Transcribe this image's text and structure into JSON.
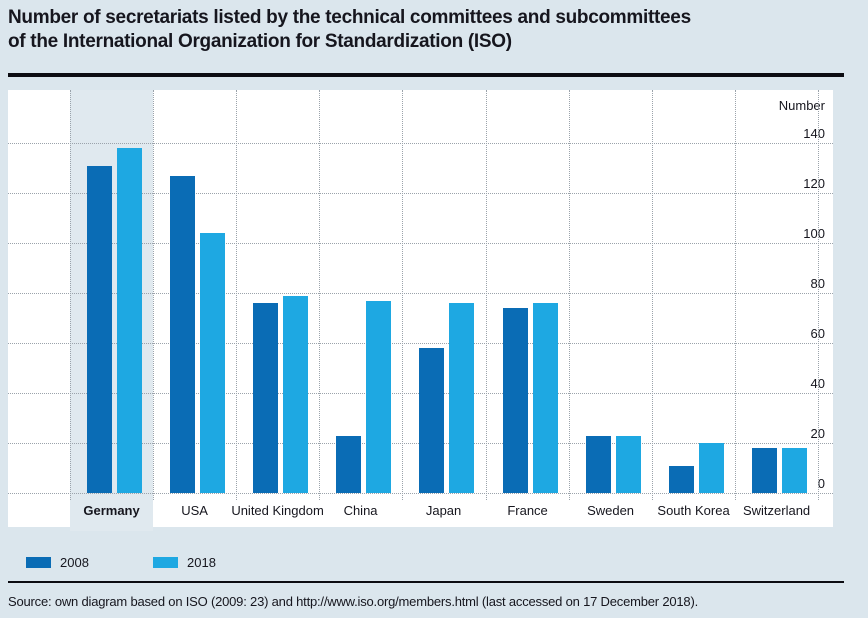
{
  "title": {
    "line1": "Number of secretariats listed by the technical committees and subcommittees",
    "line2": "of the International Organization for Standardization (ISO)"
  },
  "chart_data": {
    "type": "bar",
    "title": "Number of secretariats listed by the technical committees and subcommittees of the International Organization for Standardization (ISO)",
    "ylabel": "Number",
    "categories": [
      "Germany",
      "USA",
      "United Kingdom",
      "China",
      "Japan",
      "France",
      "Sweden",
      "South Korea",
      "Switzerland"
    ],
    "series": [
      {
        "name": "2008",
        "color": "#0a6cb5",
        "values": [
          131,
          127,
          76,
          23,
          58,
          74,
          23,
          11,
          18
        ]
      },
      {
        "name": "2018",
        "color": "#1ea8e2",
        "values": [
          138,
          104,
          79,
          77,
          76,
          76,
          23,
          20,
          18
        ]
      }
    ],
    "yticks": [
      140,
      120,
      100,
      80,
      60,
      40,
      20,
      0
    ],
    "ylim": [
      0,
      161
    ],
    "grid": "dotted",
    "highlight_category": "Germany",
    "legend_position": "bottom-left"
  },
  "source": {
    "text": "Source: own diagram based on ISO (2009: 23) and http://www.iso.org/members.html (last accessed on 17 December 2018)."
  },
  "colors": {
    "page_background": "#dbe6ed",
    "plot_background": "#ffffff",
    "highlight_band": "#e0e9ef",
    "series_2008": "#0a6cb5",
    "series_2018": "#1ea8e2",
    "rule": "#0c0c12"
  }
}
